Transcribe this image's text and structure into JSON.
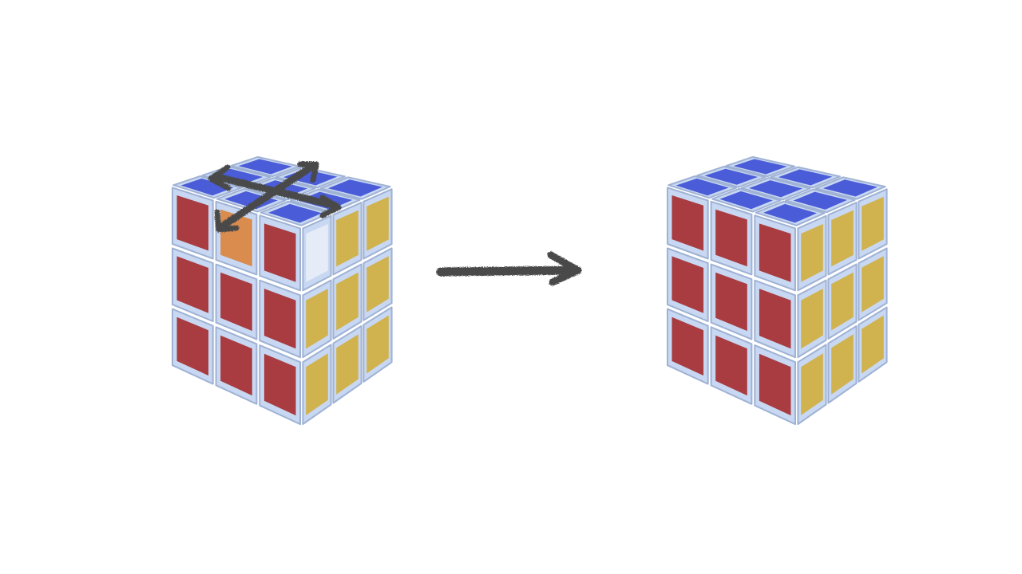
{
  "scene": {
    "background": "#ffffff",
    "cubes": [
      {
        "name": "cube-scrambled",
        "state": "two top-layer edge pieces swapped (marked by crossed arrows)",
        "front_face": [
          [
            "red",
            "orange",
            "red"
          ],
          [
            "red",
            "red",
            "red"
          ],
          [
            "red",
            "red",
            "red"
          ]
        ],
        "right_face": [
          [
            "white",
            "yellow",
            "yellow"
          ],
          [
            "yellow",
            "yellow",
            "yellow"
          ],
          [
            "yellow",
            "yellow",
            "yellow"
          ]
        ],
        "top_face": [
          [
            "blue",
            "blue",
            "blue"
          ],
          [
            "blue",
            "blue",
            "blue"
          ],
          [
            "blue",
            "blue",
            "blue"
          ]
        ],
        "overlay_icon": "swap-arrows-icon"
      },
      {
        "name": "cube-solved",
        "state": "solved",
        "front_face": [
          [
            "red",
            "red",
            "red"
          ],
          [
            "red",
            "red",
            "red"
          ],
          [
            "red",
            "red",
            "red"
          ]
        ],
        "right_face": [
          [
            "yellow",
            "yellow",
            "yellow"
          ],
          [
            "yellow",
            "yellow",
            "yellow"
          ],
          [
            "yellow",
            "yellow",
            "yellow"
          ]
        ],
        "top_face": [
          [
            "blue",
            "blue",
            "blue"
          ],
          [
            "blue",
            "blue",
            "blue"
          ],
          [
            "blue",
            "blue",
            "blue"
          ]
        ]
      }
    ],
    "transition_icon": "right-arrow-icon"
  },
  "colors": {
    "red": "#a83c41",
    "orange": "#d98c4e",
    "blue": "#4a5cd8",
    "yellow": "#d0b24e",
    "white": "#e6ecf7",
    "cubie_body": "#c8d8f2",
    "cubie_shadow": "#9fb2d4",
    "arrow": "#4a4a4a"
  }
}
